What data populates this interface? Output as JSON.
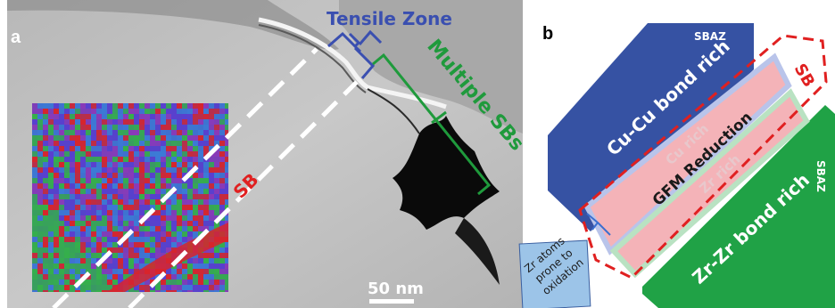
{
  "panel_a": {
    "letter": "a",
    "tensile_zone_label": "Tensile Zone",
    "multiple_sbs_label": "Multiple SBs",
    "shear_band_label": "SB",
    "scale_bar_label": "50 nm",
    "colors": {
      "tensile_zone": "#3a4fb0",
      "multiple_sbs": "#1f9a3c",
      "shear_band": "#e02020",
      "dashed_lines": "#ffffff",
      "map_red": "#d8252b",
      "map_blue": "#5a3fd0",
      "map_green": "#35b04a"
    }
  },
  "panel_b": {
    "letter": "b",
    "top_zone_tag": "SBAZ",
    "top_zone_label": "Cu-Cu bond rich",
    "sb_label": "SB",
    "cu_rich_label": "Cu rich",
    "gfm_label": "GFM Reduction",
    "zr_rich_label": "Zr rich",
    "bottom_zone_tag": "SBAZ",
    "bottom_zone_label": "Zr-Zr bond rich",
    "note_text": [
      "Zr atoms",
      "prone to",
      "oxidation"
    ],
    "colors": {
      "cu_zone": "#3652a3",
      "zr_zone": "#20a246",
      "band_fill": "#f4b3b8",
      "cu_band_border": "#b9c4ea",
      "zr_band_border": "#b9e2c2",
      "sb_dash": "#e02020",
      "note_fill": "#9cc4e8"
    }
  }
}
